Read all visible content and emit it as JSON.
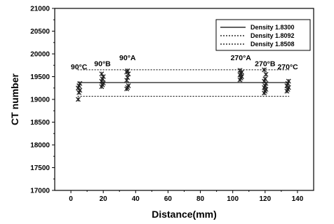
{
  "chart_data": {
    "type": "scatter",
    "title": "",
    "xlabel": "Distance(mm)",
    "ylabel": "CT number",
    "xlim": [
      -10,
      150
    ],
    "ylim": [
      17000,
      21000
    ],
    "x_ticks": [
      0,
      20,
      40,
      60,
      80,
      100,
      120,
      140
    ],
    "y_ticks": [
      17000,
      17500,
      18000,
      18500,
      19000,
      19500,
      20000,
      20500,
      21000
    ],
    "grid": false,
    "legend_position": "top-right",
    "annotations": [
      {
        "text": "90°C",
        "x": 5,
        "y": 19660
      },
      {
        "text": "90°B",
        "x": 19.5,
        "y": 19730
      },
      {
        "text": "90°A",
        "x": 35,
        "y": 19860
      },
      {
        "text": "270°A",
        "x": 105,
        "y": 19860
      },
      {
        "text": "270°B",
        "x": 120,
        "y": 19730
      },
      {
        "text": "270°C",
        "x": 134,
        "y": 19660
      }
    ],
    "lines": [
      {
        "name": "Density 1.8300",
        "style": "solid",
        "y": 19370
      },
      {
        "name": "Density 1.8092",
        "style": "dotted",
        "y": 19650
      },
      {
        "name": "Density 1.8508",
        "style": "dotted",
        "y": 19070
      }
    ],
    "series": [
      {
        "x": 5,
        "values": [
          19000,
          19150,
          19200,
          19250,
          19300,
          19350
        ]
      },
      {
        "x": 19.5,
        "values": [
          19280,
          19320,
          19360,
          19400,
          19450,
          19500,
          19560
        ]
      },
      {
        "x": 35,
        "values": [
          19230,
          19260,
          19300,
          19420,
          19480,
          19560,
          19600,
          19630
        ]
      },
      {
        "x": 105,
        "values": [
          19430,
          19470,
          19500,
          19540,
          19570,
          19600,
          19640
        ]
      },
      {
        "x": 120,
        "values": [
          19140,
          19180,
          19220,
          19260,
          19300,
          19350,
          19400,
          19450,
          19550,
          19650
        ]
      },
      {
        "x": 134,
        "values": [
          19180,
          19220,
          19260,
          19300,
          19350,
          19400
        ]
      }
    ]
  }
}
